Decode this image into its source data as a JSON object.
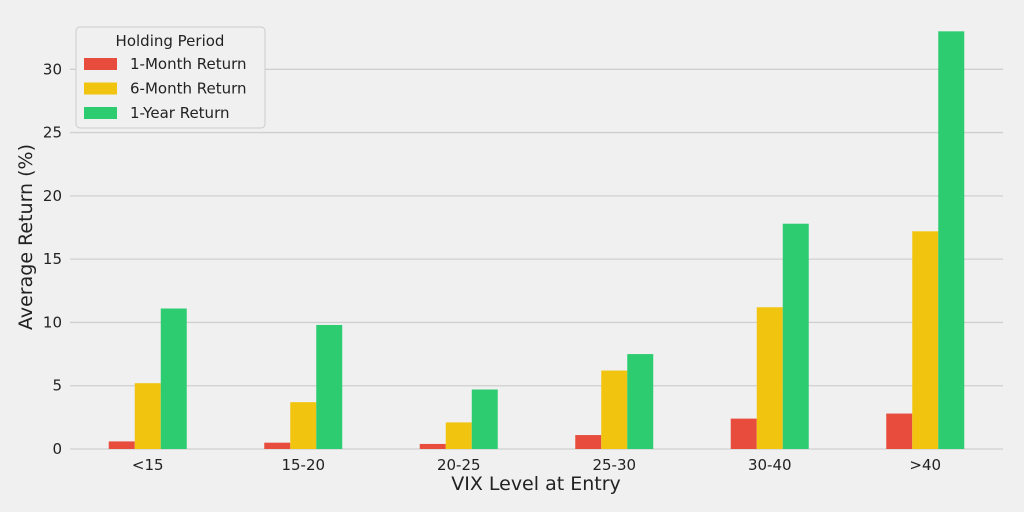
{
  "chart_data": {
    "type": "bar",
    "title": "",
    "xlabel": "VIX Level at Entry",
    "ylabel": "Average Return (%)",
    "ylim": [
      0,
      33.5
    ],
    "yticks": [
      0,
      5,
      10,
      15,
      20,
      25,
      30
    ],
    "grid": "horizontal",
    "legend": {
      "title": "Holding Period",
      "placement": "top-left"
    },
    "categories": [
      "<15",
      "15-20",
      "20-25",
      "25-30",
      "30-40",
      ">40"
    ],
    "series": [
      {
        "name": "1-Month Return",
        "color": "#e74c3c",
        "values": [
          0.6,
          0.5,
          0.4,
          1.1,
          2.4,
          2.8
        ]
      },
      {
        "name": "6-Month Return",
        "color": "#f1c40f",
        "values": [
          5.2,
          3.7,
          2.1,
          6.2,
          11.2,
          17.2
        ]
      },
      {
        "name": "1-Year Return",
        "color": "#2ecc71",
        "values": [
          11.1,
          9.8,
          4.7,
          7.5,
          17.8,
          33.0
        ]
      }
    ]
  }
}
